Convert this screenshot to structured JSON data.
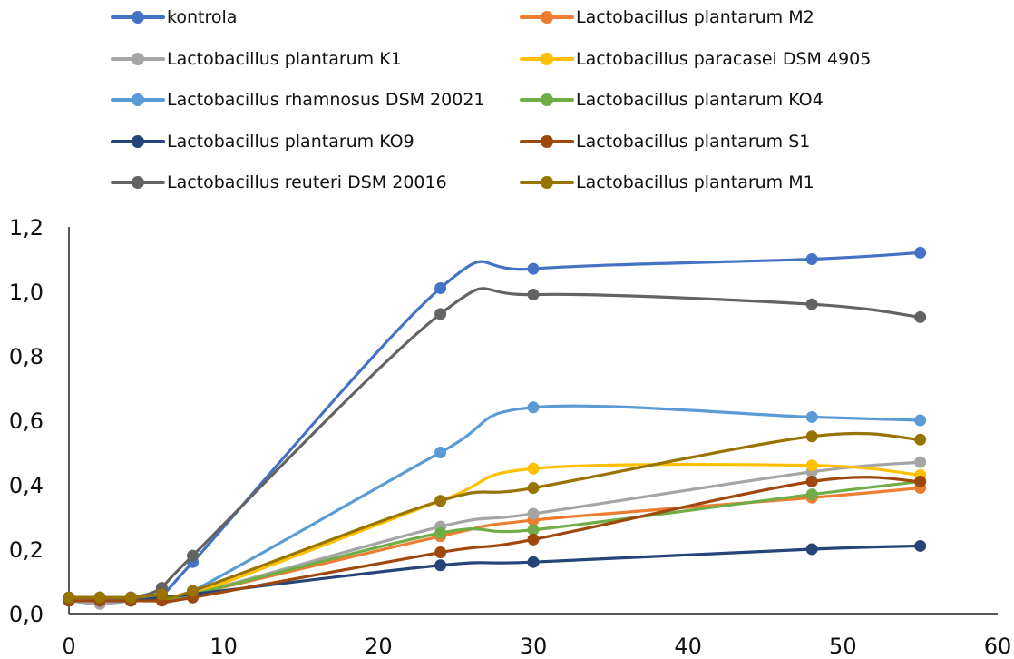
{
  "chart_data": {
    "type": "line",
    "title": "",
    "xlabel": "",
    "ylabel": "",
    "xlim": [
      0,
      60
    ],
    "ylim": [
      0,
      1.2
    ],
    "xticks": [
      "0",
      "10",
      "20",
      "30",
      "40",
      "50",
      "60"
    ],
    "yticks": [
      "0,0",
      "0,2",
      "0,4",
      "0,6",
      "0,8",
      "1,0",
      "1,2"
    ],
    "grid": false,
    "legend_position": "top",
    "x": [
      0,
      2,
      4,
      6,
      8,
      24,
      30,
      48,
      55
    ],
    "series": [
      {
        "name": "kontrola",
        "color": "#4472C4",
        "values": [
          0.05,
          0.05,
          0.05,
          0.06,
          0.16,
          1.01,
          1.07,
          1.1,
          1.12
        ]
      },
      {
        "name": "Lactobacillus plantarum M2",
        "color": "#ED7D31",
        "values": [
          0.04,
          0.04,
          0.04,
          0.05,
          0.06,
          0.24,
          0.29,
          0.36,
          0.39
        ]
      },
      {
        "name": "Lactobacillus plantarum K1",
        "color": "#A5A5A5",
        "values": [
          0.04,
          0.03,
          0.04,
          0.05,
          0.06,
          0.27,
          0.31,
          0.44,
          0.47
        ]
      },
      {
        "name": "Lactobacillus paracasei DSM 4905",
        "color": "#FFC000",
        "values": [
          0.05,
          0.05,
          0.05,
          0.05,
          0.06,
          0.35,
          0.45,
          0.46,
          0.43
        ]
      },
      {
        "name": "Lactobacillus rhamnosus DSM 20021",
        "color": "#5B9BD5",
        "values": [
          0.05,
          0.05,
          0.05,
          0.06,
          0.07,
          0.5,
          0.64,
          0.61,
          0.6
        ]
      },
      {
        "name": "Lactobacillus plantarum KO4",
        "color": "#70AD47",
        "values": [
          0.05,
          0.05,
          0.05,
          0.05,
          0.06,
          0.25,
          0.26,
          0.37,
          0.41
        ]
      },
      {
        "name": "Lactobacillus plantarum KO9",
        "color": "#264478",
        "values": [
          0.04,
          0.04,
          0.04,
          0.05,
          0.06,
          0.15,
          0.16,
          0.2,
          0.21
        ]
      },
      {
        "name": "Lactobacillus plantarum S1",
        "color": "#9E480E",
        "values": [
          0.04,
          0.04,
          0.04,
          0.04,
          0.05,
          0.19,
          0.23,
          0.41,
          0.41
        ]
      },
      {
        "name": "Lactobacillus reuteri DSM 20016",
        "color": "#636363",
        "values": [
          0.05,
          0.05,
          0.05,
          0.08,
          0.18,
          0.93,
          0.99,
          0.96,
          0.92
        ]
      },
      {
        "name": "Lactobacillus plantarum M1",
        "color": "#997300",
        "values": [
          0.05,
          0.05,
          0.05,
          0.06,
          0.07,
          0.35,
          0.39,
          0.55,
          0.54
        ]
      }
    ]
  }
}
